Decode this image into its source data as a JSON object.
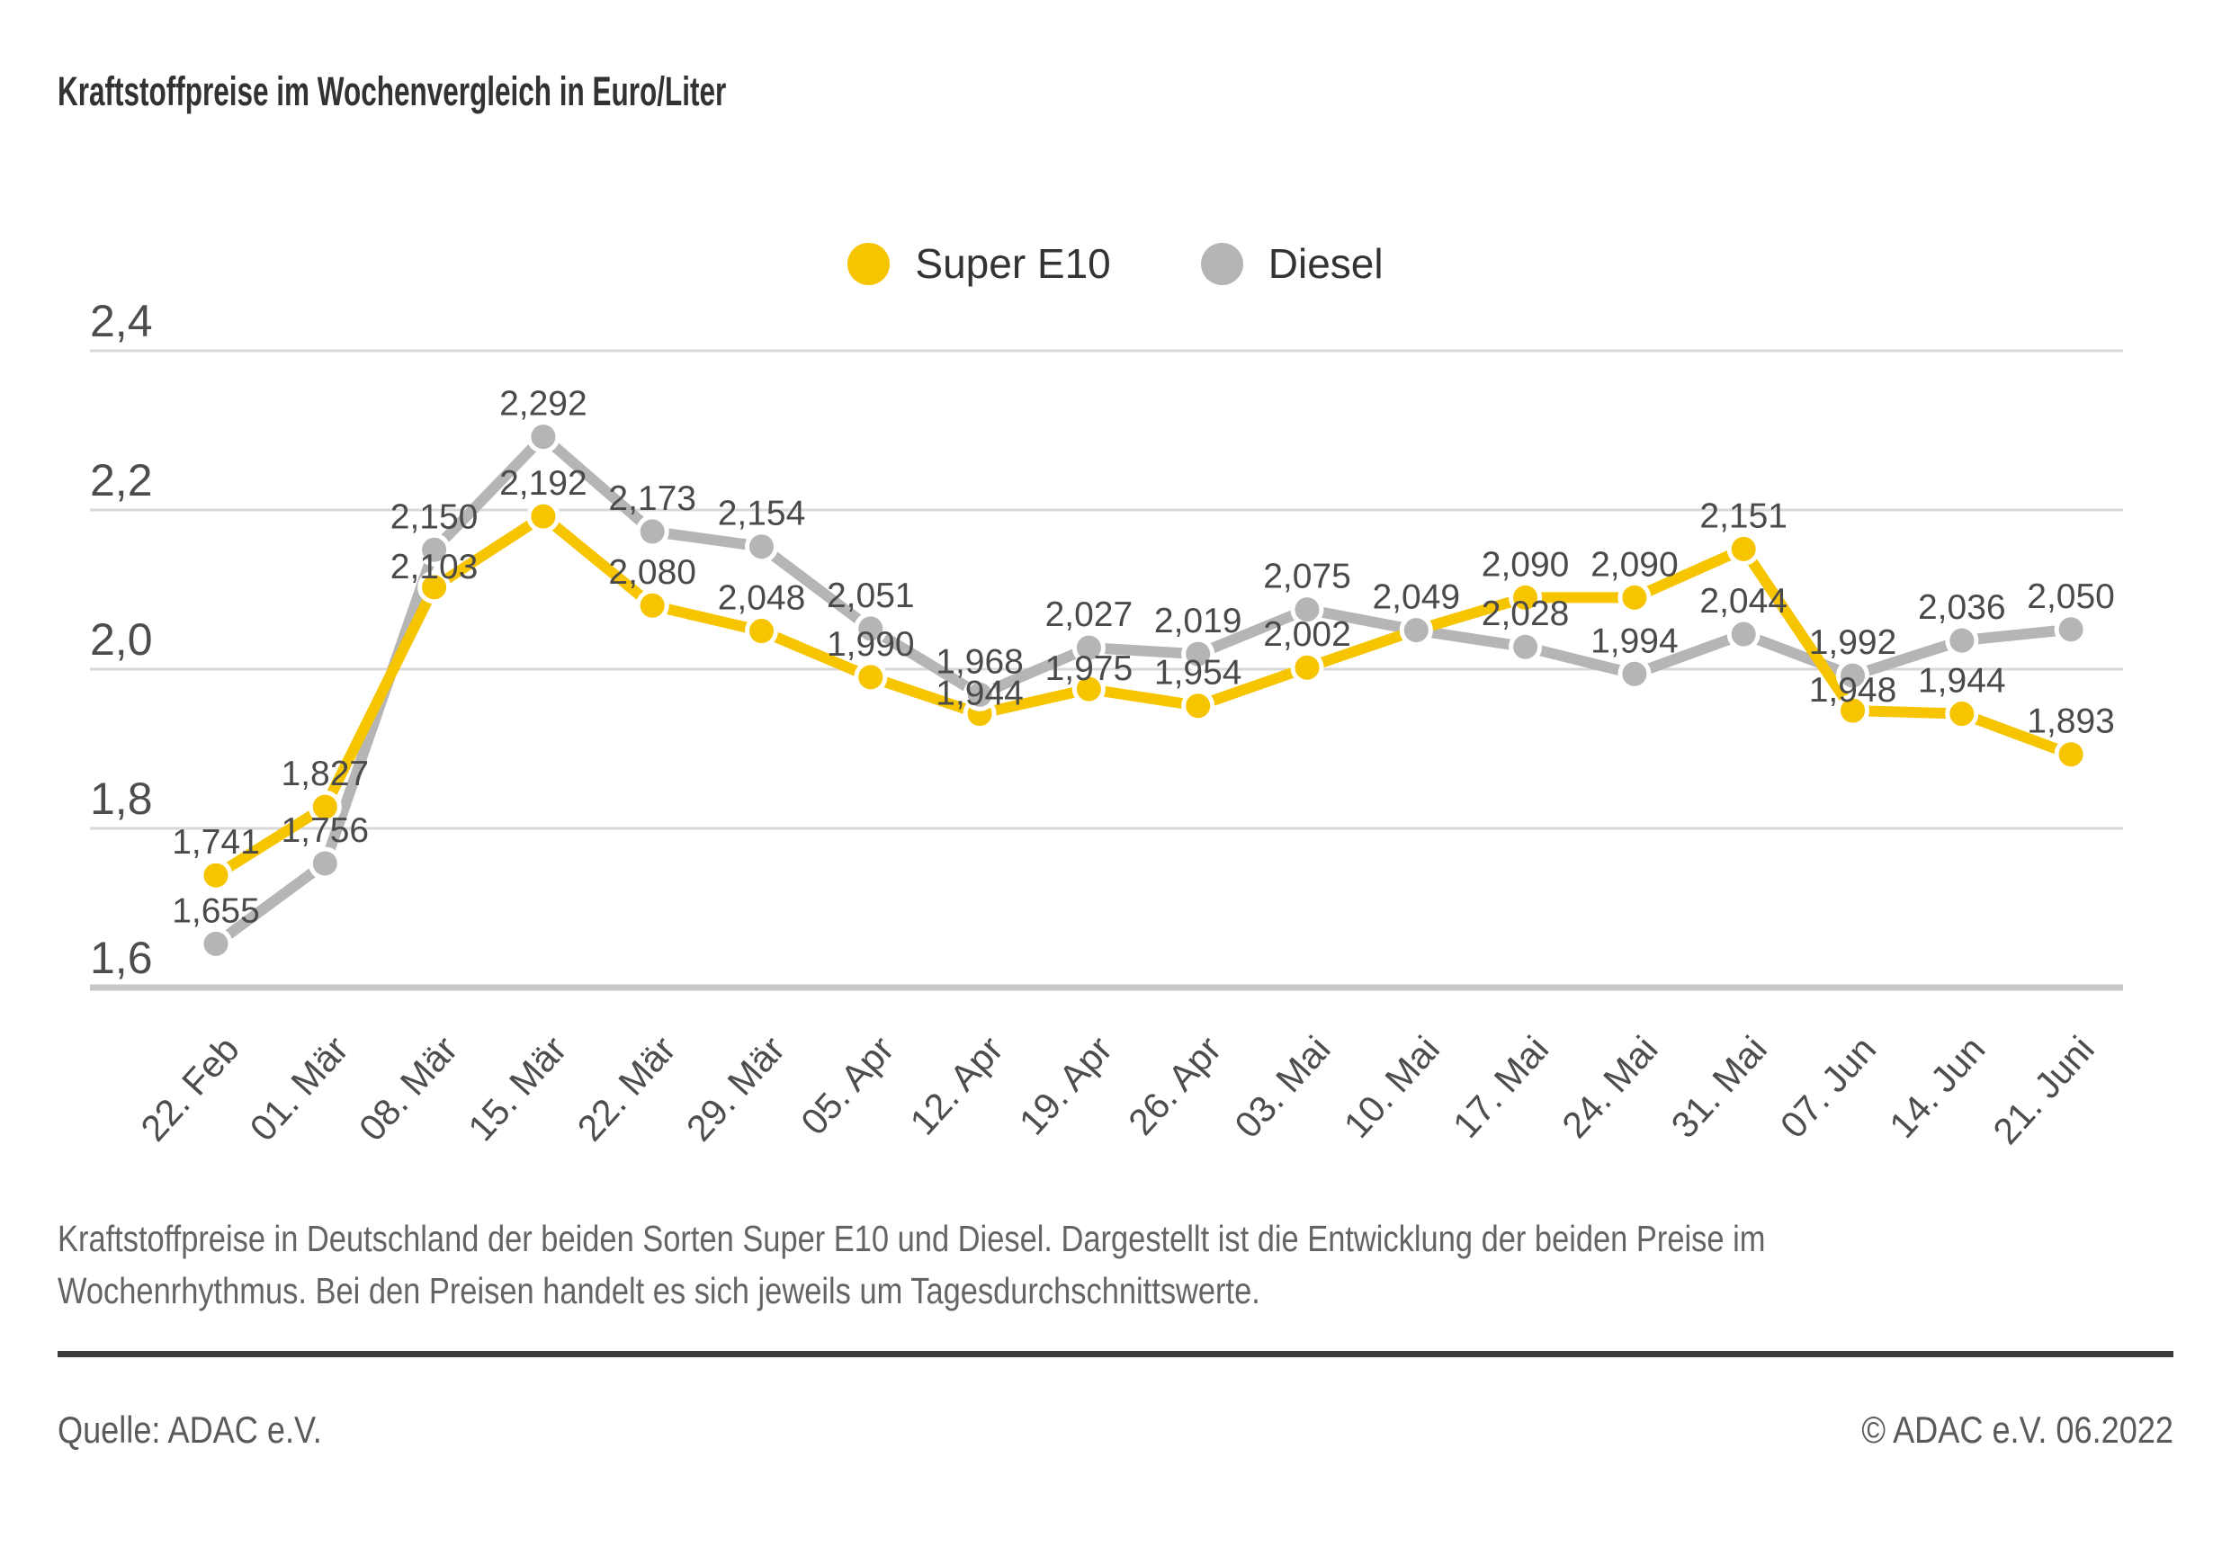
{
  "title": "Kraftstoffpreise im Wochenvergleich in Euro/Liter",
  "legend": [
    {
      "label": "Super E10",
      "color": "#f6c500"
    },
    {
      "label": "Diesel",
      "color": "#b5b5b5"
    }
  ],
  "chart_data": {
    "type": "line",
    "title": "Kraftstoffpreise im Wochenvergleich in Euro/Liter",
    "x": [
      "22. Feb",
      "01. Mär",
      "08. Mär",
      "15. Mär",
      "22. Mär",
      "29. Mär",
      "05. Apr",
      "12. Apr",
      "19. Apr",
      "26. Apr",
      "03. Mai",
      "10. Mai",
      "17. Mai",
      "24. Mai",
      "31. Mai",
      "07. Jun",
      "14. Jun",
      "21. Juni"
    ],
    "series": [
      {
        "name": "Super E10",
        "color": "#f6c500",
        "values": [
          1.741,
          1.827,
          2.103,
          2.192,
          2.08,
          2.048,
          1.99,
          1.944,
          1.975,
          1.954,
          2.002,
          2.049,
          2.09,
          2.09,
          2.151,
          1.948,
          1.944,
          1.893
        ],
        "labels": [
          "1,741",
          "1,827",
          "2,103",
          "2,192",
          "2,080",
          "2,048",
          "1,990",
          "1,944",
          "1,975",
          "1,954",
          "2,002",
          "",
          "2,090",
          "2,090",
          "2,151",
          "1,948",
          "1,944",
          "1,893"
        ]
      },
      {
        "name": "Diesel",
        "color": "#b5b5b5",
        "values": [
          1.655,
          1.756,
          2.15,
          2.292,
          2.173,
          2.154,
          2.051,
          1.968,
          2.027,
          2.019,
          2.075,
          2.049,
          2.028,
          1.994,
          2.044,
          1.992,
          2.036,
          2.05
        ],
        "labels": [
          "1,655",
          "1,756",
          "2,150",
          "2,292",
          "2,173",
          "2,154",
          "2,051",
          "1,968",
          "2,027",
          "2,019",
          "2,075",
          "2,049",
          "2,028",
          "1,994",
          "2,044",
          "1,992",
          "2,036",
          "2,050"
        ]
      }
    ],
    "xlabel": "",
    "ylabel": "",
    "ylim": [
      1.6,
      2.4
    ],
    "yticks": {
      "values": [
        2.4,
        2.2,
        2.0,
        1.8,
        1.6
      ],
      "labels": [
        "2,4",
        "2,2",
        "2,0",
        "1,8",
        "1,6"
      ]
    },
    "grid": true,
    "legend_position": "top-center",
    "label_color": "#4a4a4a",
    "axis_text_color": "#4d4d4d",
    "grid_color": "#d8d8d8",
    "baseline_color": "#c7c7c7"
  },
  "caption": {
    "line1": "Kraftstoffpreise in Deutschland der beiden Sorten Super E10 und Diesel. Dargestellt ist die Entwicklung der beiden Preise im",
    "line2": "Wochenrhythmus. Bei den Preisen handelt es sich jeweils um Tagesdurchschnittswerte."
  },
  "footer": {
    "source": "Quelle: ADAC e.V.",
    "copyright": "© ADAC e.V. 06.2022"
  }
}
